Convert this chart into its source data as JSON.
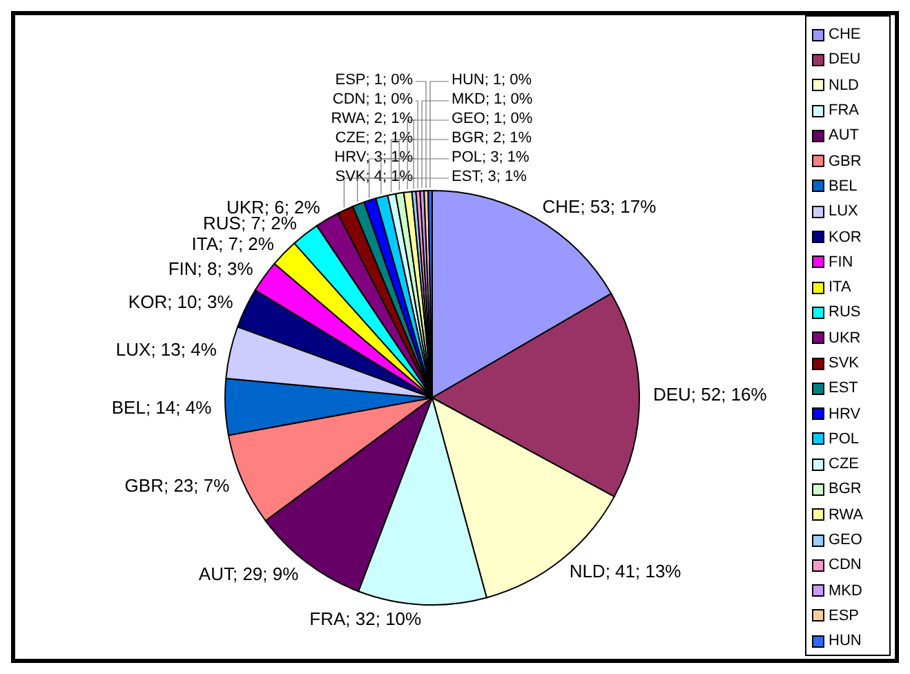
{
  "chart_data": {
    "type": "pie",
    "categories": [
      "CHE",
      "DEU",
      "NLD",
      "FRA",
      "AUT",
      "GBR",
      "BEL",
      "LUX",
      "KOR",
      "FIN",
      "ITA",
      "RUS",
      "UKR",
      "SVK",
      "EST",
      "HRV",
      "POL",
      "CZE",
      "BGR",
      "RWA",
      "GEO",
      "CDN",
      "MKD",
      "ESP",
      "HUN"
    ],
    "values": [
      53,
      52,
      41,
      32,
      29,
      23,
      14,
      13,
      10,
      8,
      7,
      7,
      6,
      4,
      3,
      3,
      3,
      2,
      2,
      2,
      1,
      1,
      1,
      1,
      1
    ],
    "value_labels": [
      "CHE; 53; 17%",
      "DEU; 52; 16%",
      "NLD; 41; 13%",
      "FRA; 32; 10%",
      "AUT; 29; 9%",
      "GBR; 23; 7%",
      "BEL; 14; 4%",
      "LUX; 13; 4%",
      "KOR; 10; 3%",
      "FIN; 8; 3%",
      "ITA; 7; 2%",
      "RUS; 7; 2%",
      "UKR; 6; 2%",
      "SVK; 4; 1%",
      "EST; 3; 1%",
      "HRV; 3; 1%",
      "POL; 3; 1%",
      "CZE; 2; 1%",
      "BGR; 2; 1%",
      "RWA; 2; 1%",
      "GEO; 1; 0%",
      "CDN; 1; 0%",
      "MKD; 1; 0%",
      "ESP; 1; 0%",
      "HUN; 1; 0%"
    ],
    "colors": [
      "#9999ff",
      "#993366",
      "#ffffcc",
      "#ccffff",
      "#660066",
      "#ff8080",
      "#0066cc",
      "#ccccff",
      "#000080",
      "#ff00ff",
      "#ffff00",
      "#00ffff",
      "#800080",
      "#800000",
      "#008080",
      "#0000ff",
      "#00ccff",
      "#ccffff",
      "#ccffcc",
      "#ffff99",
      "#99ccff",
      "#ff99cc",
      "#cc99ff",
      "#ffcc99",
      "#3366ff"
    ],
    "legend": "right"
  }
}
